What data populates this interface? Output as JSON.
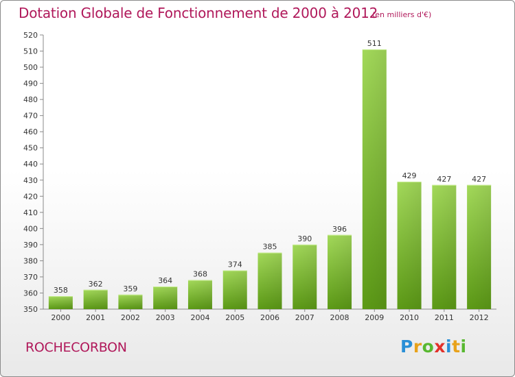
{
  "header": {
    "title": "Dotation Globale de Fonctionnement de 2000 à 2012",
    "unit": "(en milliers d'€)"
  },
  "footer": {
    "commune": "ROCHECORBON",
    "logo": {
      "letters": [
        "P",
        "r",
        "o",
        "x",
        "i",
        "t",
        "i"
      ],
      "colors": [
        "#2a8fd6",
        "#e8a21b",
        "#58b830",
        "#e2312a",
        "#2a8fd6",
        "#e8a21b",
        "#58b830"
      ]
    }
  },
  "colors": {
    "title": "#b0185a",
    "bar_light": "#9fd453",
    "bar_dark": "#5f9e18",
    "axis": "#888888"
  },
  "chart_data": {
    "type": "bar",
    "categories": [
      "2000",
      "2001",
      "2002",
      "2003",
      "2004",
      "2005",
      "2006",
      "2007",
      "2008",
      "2009",
      "2010",
      "2011",
      "2012"
    ],
    "values": [
      358,
      362,
      359,
      364,
      368,
      374,
      385,
      390,
      396,
      511,
      429,
      427,
      427
    ],
    "value_labels": [
      "358",
      "362",
      "359",
      "364",
      "368",
      "374",
      "385",
      "390",
      "396",
      "511",
      "429",
      "427",
      "427"
    ],
    "ylim": [
      350,
      520
    ],
    "yticks": [
      350,
      360,
      370,
      380,
      390,
      400,
      410,
      420,
      430,
      440,
      450,
      460,
      470,
      480,
      490,
      500,
      510,
      520
    ],
    "grid": false
  }
}
